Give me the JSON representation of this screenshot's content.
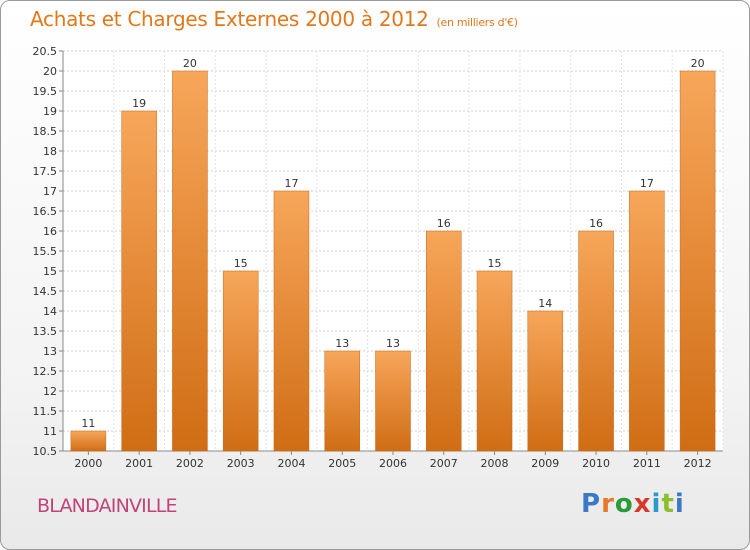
{
  "header": {
    "title": "Achats et Charges Externes 2000 à 2012",
    "subtitle": "(en milliers d'€)"
  },
  "footer": {
    "city": "BLANDAINVILLE",
    "logo_text": "Proxiti"
  },
  "colors": {
    "title": "#e2781a",
    "city": "#c0437a",
    "bar_light": "#f7a65a",
    "bar_dark": "#d06d14"
  },
  "chart_data": {
    "type": "bar",
    "title": "Achats et Charges Externes 2000 à 2012",
    "subtitle": "(en milliers d'€)",
    "xlabel": "",
    "ylabel": "",
    "categories": [
      "2000",
      "2001",
      "2002",
      "2003",
      "2004",
      "2005",
      "2006",
      "2007",
      "2008",
      "2009",
      "2010",
      "2011",
      "2012"
    ],
    "values": [
      11,
      19,
      20,
      15,
      17,
      13,
      13,
      16,
      15,
      14,
      16,
      17,
      20
    ],
    "ylim": [
      10.5,
      20.5
    ],
    "yticks": [
      "10.5",
      "11",
      "11.5",
      "12",
      "12.5",
      "13",
      "13.5",
      "14",
      "14.5",
      "15",
      "15.5",
      "16",
      "16.5",
      "17",
      "17.5",
      "18",
      "18.5",
      "19",
      "19.5",
      "20",
      "20.5"
    ],
    "grid": true,
    "legend": "none"
  }
}
